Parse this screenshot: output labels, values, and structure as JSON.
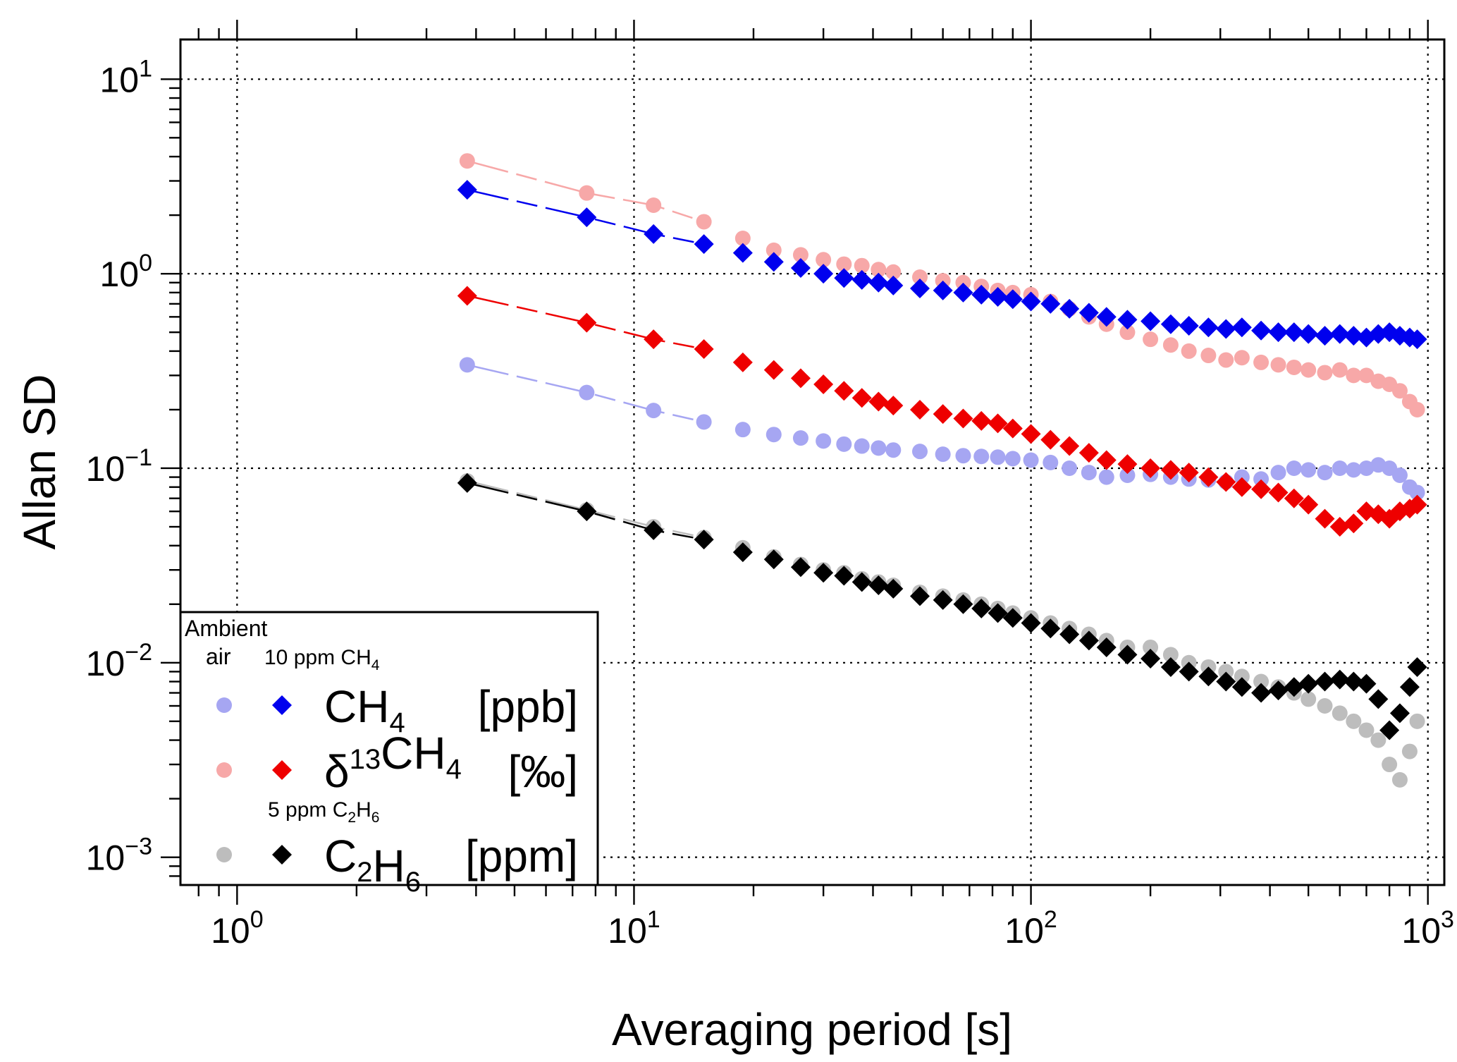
{
  "chart_data": {
    "type": "scatter",
    "xscale": "log",
    "yscale": "log",
    "xlim": [
      0.72,
      1100
    ],
    "ylim": [
      0.00072,
      16
    ],
    "xlabel": "Averaging period [s]",
    "ylabel": "Allan SD",
    "x_ticks": [
      {
        "value": 1,
        "base": "10",
        "exp": "0"
      },
      {
        "value": 10,
        "base": "10",
        "exp": "1"
      },
      {
        "value": 100,
        "base": "10",
        "exp": "2"
      },
      {
        "value": 1000,
        "base": "10",
        "exp": "3"
      }
    ],
    "y_ticks": [
      {
        "value": 0.001,
        "base": "10",
        "exp": "−3"
      },
      {
        "value": 0.01,
        "base": "10",
        "exp": "−2"
      },
      {
        "value": 0.1,
        "base": "10",
        "exp": "−1"
      },
      {
        "value": 1,
        "base": "10",
        "exp": "0"
      },
      {
        "value": 10,
        "base": "10",
        "exp": "1"
      }
    ],
    "grid": true,
    "legend": {
      "position": "bottom-left",
      "col_header_line1": "Ambient",
      "col_header_line2": "air",
      "header_10ppm_text": "10 ppm CH",
      "header_10ppm_sub": "4",
      "header_5ppm_text": "5 ppm C",
      "header_5ppm_sub1": "2",
      "header_5ppm_mid": "H",
      "header_5ppm_sub2": "6",
      "rows": [
        {
          "species": "CH4",
          "parts": [
            {
              "t": "CH"
            },
            {
              "t": "4",
              "sub": true
            }
          ],
          "unit": "[ppb]"
        },
        {
          "species": "d13CH4",
          "parts": [
            {
              "t": "δ"
            },
            {
              "t": "13",
              "sup": true
            },
            {
              "t": "CH"
            },
            {
              "t": "4",
              "sub": true
            }
          ],
          "unit": "[‰]"
        },
        {
          "species": "C2H6",
          "parts": [
            {
              "t": "C"
            },
            {
              "t": "2",
              "sub": true
            },
            {
              "t": "H"
            },
            {
              "t": "6",
              "sub": true
            }
          ],
          "unit": "[ppm]"
        }
      ]
    },
    "series": [
      {
        "name": "CH4 ambient air",
        "species": "CH4",
        "sample": "Ambient air",
        "marker": "circle",
        "color": "#a6a6f2",
        "points": [
          [
            3.8,
            0.34
          ],
          [
            7.6,
            0.245
          ],
          [
            11.2,
            0.198
          ],
          [
            15,
            0.173
          ],
          [
            18.8,
            0.158
          ],
          [
            22.5,
            0.149
          ],
          [
            26.3,
            0.143
          ],
          [
            30,
            0.138
          ],
          [
            33.8,
            0.133
          ],
          [
            37.5,
            0.13
          ],
          [
            41.3,
            0.127
          ],
          [
            45,
            0.124
          ],
          [
            52.5,
            0.122
          ],
          [
            60,
            0.118
          ],
          [
            67.5,
            0.116
          ],
          [
            75,
            0.115
          ],
          [
            82.5,
            0.114
          ],
          [
            90,
            0.112
          ],
          [
            100,
            0.11
          ],
          [
            112,
            0.107
          ],
          [
            125,
            0.1
          ],
          [
            140,
            0.095
          ],
          [
            155,
            0.09
          ],
          [
            175,
            0.092
          ],
          [
            200,
            0.093
          ],
          [
            225,
            0.09
          ],
          [
            250,
            0.088
          ],
          [
            280,
            0.087
          ],
          [
            310,
            0.085
          ],
          [
            340,
            0.09
          ],
          [
            380,
            0.088
          ],
          [
            420,
            0.095
          ],
          [
            460,
            0.1
          ],
          [
            500,
            0.098
          ],
          [
            550,
            0.095
          ],
          [
            600,
            0.1
          ],
          [
            650,
            0.098
          ],
          [
            700,
            0.1
          ],
          [
            750,
            0.104
          ],
          [
            800,
            0.1
          ],
          [
            850,
            0.092
          ],
          [
            900,
            0.08
          ],
          [
            940,
            0.075
          ]
        ]
      },
      {
        "name": "CH4 10 ppm CH4",
        "species": "CH4",
        "sample": "10 ppm CH4",
        "marker": "diamond",
        "color": "#0000ee",
        "points": [
          [
            3.8,
            2.7
          ],
          [
            7.6,
            1.95
          ],
          [
            11.2,
            1.6
          ],
          [
            15,
            1.42
          ],
          [
            18.8,
            1.28
          ],
          [
            22.5,
            1.15
          ],
          [
            26.3,
            1.07
          ],
          [
            30,
            1.0
          ],
          [
            33.8,
            0.95
          ],
          [
            37.5,
            0.93
          ],
          [
            41.3,
            0.9
          ],
          [
            45,
            0.87
          ],
          [
            52.5,
            0.84
          ],
          [
            60,
            0.82
          ],
          [
            67.5,
            0.8
          ],
          [
            75,
            0.78
          ],
          [
            82.5,
            0.76
          ],
          [
            90,
            0.74
          ],
          [
            100,
            0.72
          ],
          [
            112,
            0.7
          ],
          [
            125,
            0.66
          ],
          [
            140,
            0.63
          ],
          [
            155,
            0.6
          ],
          [
            175,
            0.58
          ],
          [
            200,
            0.57
          ],
          [
            225,
            0.55
          ],
          [
            250,
            0.54
          ],
          [
            280,
            0.53
          ],
          [
            310,
            0.52
          ],
          [
            340,
            0.53
          ],
          [
            380,
            0.51
          ],
          [
            420,
            0.5
          ],
          [
            460,
            0.5
          ],
          [
            500,
            0.49
          ],
          [
            550,
            0.48
          ],
          [
            600,
            0.49
          ],
          [
            650,
            0.48
          ],
          [
            700,
            0.47
          ],
          [
            750,
            0.49
          ],
          [
            800,
            0.5
          ],
          [
            850,
            0.48
          ],
          [
            900,
            0.47
          ],
          [
            940,
            0.46
          ]
        ]
      },
      {
        "name": "d13CH4 ambient air",
        "species": "d13CH4",
        "sample": "Ambient air",
        "marker": "circle",
        "color": "#f7a8a8",
        "points": [
          [
            3.8,
            3.8
          ],
          [
            7.6,
            2.6
          ],
          [
            11.2,
            2.25
          ],
          [
            15,
            1.85
          ],
          [
            18.8,
            1.52
          ],
          [
            22.5,
            1.32
          ],
          [
            26.3,
            1.25
          ],
          [
            30,
            1.18
          ],
          [
            33.8,
            1.12
          ],
          [
            37.5,
            1.1
          ],
          [
            41.3,
            1.05
          ],
          [
            45,
            1.02
          ],
          [
            52.5,
            0.96
          ],
          [
            60,
            0.92
          ],
          [
            67.5,
            0.9
          ],
          [
            75,
            0.86
          ],
          [
            82.5,
            0.82
          ],
          [
            90,
            0.8
          ],
          [
            100,
            0.78
          ],
          [
            112,
            0.72
          ],
          [
            125,
            0.66
          ],
          [
            140,
            0.6
          ],
          [
            155,
            0.55
          ],
          [
            175,
            0.5
          ],
          [
            200,
            0.46
          ],
          [
            225,
            0.43
          ],
          [
            250,
            0.4
          ],
          [
            280,
            0.38
          ],
          [
            310,
            0.36
          ],
          [
            340,
            0.37
          ],
          [
            380,
            0.35
          ],
          [
            420,
            0.34
          ],
          [
            460,
            0.33
          ],
          [
            500,
            0.32
          ],
          [
            550,
            0.31
          ],
          [
            600,
            0.32
          ],
          [
            650,
            0.3
          ],
          [
            700,
            0.3
          ],
          [
            750,
            0.28
          ],
          [
            800,
            0.27
          ],
          [
            850,
            0.25
          ],
          [
            900,
            0.22
          ],
          [
            940,
            0.2
          ]
        ]
      },
      {
        "name": "d13CH4 10 ppm CH4",
        "species": "d13CH4",
        "sample": "10 ppm CH4",
        "marker": "diamond",
        "color": "#ee0000",
        "points": [
          [
            3.8,
            0.77
          ],
          [
            7.6,
            0.56
          ],
          [
            11.2,
            0.46
          ],
          [
            15,
            0.41
          ],
          [
            18.8,
            0.35
          ],
          [
            22.5,
            0.32
          ],
          [
            26.3,
            0.29
          ],
          [
            30,
            0.27
          ],
          [
            33.8,
            0.25
          ],
          [
            37.5,
            0.23
          ],
          [
            41.3,
            0.22
          ],
          [
            45,
            0.21
          ],
          [
            52.5,
            0.2
          ],
          [
            60,
            0.19
          ],
          [
            67.5,
            0.18
          ],
          [
            75,
            0.175
          ],
          [
            82.5,
            0.17
          ],
          [
            90,
            0.16
          ],
          [
            100,
            0.15
          ],
          [
            112,
            0.14
          ],
          [
            125,
            0.13
          ],
          [
            140,
            0.12
          ],
          [
            155,
            0.11
          ],
          [
            175,
            0.105
          ],
          [
            200,
            0.1
          ],
          [
            225,
            0.098
          ],
          [
            250,
            0.095
          ],
          [
            280,
            0.09
          ],
          [
            310,
            0.085
          ],
          [
            340,
            0.08
          ],
          [
            380,
            0.078
          ],
          [
            420,
            0.075
          ],
          [
            460,
            0.07
          ],
          [
            500,
            0.065
          ],
          [
            550,
            0.055
          ],
          [
            600,
            0.05
          ],
          [
            650,
            0.052
          ],
          [
            700,
            0.06
          ],
          [
            750,
            0.058
          ],
          [
            800,
            0.055
          ],
          [
            850,
            0.06
          ],
          [
            900,
            0.062
          ],
          [
            940,
            0.065
          ]
        ]
      },
      {
        "name": "C2H6 ambient air",
        "species": "C2H6",
        "sample": "Ambient air",
        "marker": "circle",
        "color": "#bdbdbd",
        "points": [
          [
            3.8,
            0.086
          ],
          [
            7.6,
            0.061
          ],
          [
            11.2,
            0.05
          ],
          [
            15,
            0.044
          ],
          [
            18.8,
            0.039
          ],
          [
            22.5,
            0.035
          ],
          [
            26.3,
            0.032
          ],
          [
            30,
            0.03
          ],
          [
            33.8,
            0.029
          ],
          [
            37.5,
            0.027
          ],
          [
            41.3,
            0.026
          ],
          [
            45,
            0.025
          ],
          [
            52.5,
            0.023
          ],
          [
            60,
            0.022
          ],
          [
            67.5,
            0.021
          ],
          [
            75,
            0.02
          ],
          [
            82.5,
            0.019
          ],
          [
            90,
            0.018
          ],
          [
            100,
            0.017
          ],
          [
            112,
            0.016
          ],
          [
            125,
            0.015
          ],
          [
            140,
            0.014
          ],
          [
            155,
            0.013
          ],
          [
            175,
            0.012
          ],
          [
            200,
            0.012
          ],
          [
            225,
            0.011
          ],
          [
            250,
            0.01
          ],
          [
            280,
            0.0095
          ],
          [
            310,
            0.009
          ],
          [
            340,
            0.0085
          ],
          [
            380,
            0.008
          ],
          [
            420,
            0.0075
          ],
          [
            460,
            0.007
          ],
          [
            500,
            0.0065
          ],
          [
            550,
            0.006
          ],
          [
            600,
            0.0055
          ],
          [
            650,
            0.005
          ],
          [
            700,
            0.0045
          ],
          [
            750,
            0.004
          ],
          [
            800,
            0.003
          ],
          [
            850,
            0.0025
          ],
          [
            900,
            0.0035
          ],
          [
            940,
            0.005
          ]
        ]
      },
      {
        "name": "C2H6 5 ppm C2H6",
        "species": "C2H6",
        "sample": "5 ppm C2H6",
        "marker": "diamond",
        "color": "#000000",
        "points": [
          [
            3.8,
            0.084
          ],
          [
            7.6,
            0.06
          ],
          [
            11.2,
            0.048
          ],
          [
            15,
            0.043
          ],
          [
            18.8,
            0.037
          ],
          [
            22.5,
            0.034
          ],
          [
            26.3,
            0.031
          ],
          [
            30,
            0.029
          ],
          [
            33.8,
            0.028
          ],
          [
            37.5,
            0.026
          ],
          [
            41.3,
            0.025
          ],
          [
            45,
            0.024
          ],
          [
            52.5,
            0.022
          ],
          [
            60,
            0.021
          ],
          [
            67.5,
            0.02
          ],
          [
            75,
            0.019
          ],
          [
            82.5,
            0.018
          ],
          [
            90,
            0.017
          ],
          [
            100,
            0.016
          ],
          [
            112,
            0.015
          ],
          [
            125,
            0.014
          ],
          [
            140,
            0.013
          ],
          [
            155,
            0.012
          ],
          [
            175,
            0.011
          ],
          [
            200,
            0.0105
          ],
          [
            225,
            0.0095
          ],
          [
            250,
            0.009
          ],
          [
            280,
            0.0085
          ],
          [
            310,
            0.008
          ],
          [
            340,
            0.0075
          ],
          [
            380,
            0.007
          ],
          [
            420,
            0.0072
          ],
          [
            460,
            0.0075
          ],
          [
            500,
            0.0078
          ],
          [
            550,
            0.008
          ],
          [
            600,
            0.0082
          ],
          [
            650,
            0.008
          ],
          [
            700,
            0.0078
          ],
          [
            750,
            0.0065
          ],
          [
            800,
            0.0045
          ],
          [
            850,
            0.0055
          ],
          [
            900,
            0.0075
          ],
          [
            940,
            0.0095
          ]
        ]
      }
    ]
  }
}
